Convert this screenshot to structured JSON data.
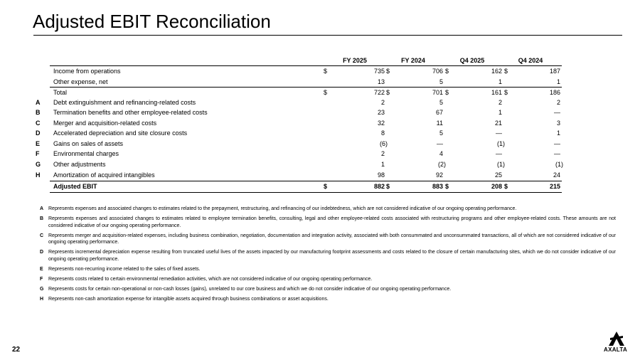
{
  "title": "Adjusted EBIT Reconciliation",
  "table": {
    "columns": [
      "FY 2025",
      "FY 2024",
      "Q4 2025",
      "Q4 2024"
    ],
    "rows": [
      {
        "label": "Income from operations",
        "currency": "$",
        "values": [
          "735",
          "706",
          "162",
          "187"
        ]
      },
      {
        "label": "Other expense, net",
        "values": [
          "13",
          "5",
          "1",
          "1"
        ]
      },
      {
        "label": "Total",
        "currency": "$",
        "values": [
          "722",
          "701",
          "161",
          "186"
        ]
      },
      {
        "letter": "A",
        "label": "Debt extinguishment and refinancing-related costs",
        "values": [
          "2",
          "5",
          "2",
          "2"
        ]
      },
      {
        "letter": "B",
        "label": "Termination benefits and other employee-related costs",
        "values": [
          "23",
          "67",
          "1",
          "—"
        ]
      },
      {
        "letter": "C",
        "label": "Merger and acquisition-related costs",
        "values": [
          "32",
          "11",
          "21",
          "3"
        ]
      },
      {
        "letter": "D",
        "label": "Accelerated depreciation and site closure costs",
        "values": [
          "8",
          "5",
          "—",
          "1"
        ]
      },
      {
        "letter": "E",
        "label": "Gains on sales of assets",
        "values": [
          "(6)",
          "—",
          "(1)",
          "—"
        ]
      },
      {
        "letter": "F",
        "label": "Environmental charges",
        "values": [
          "2",
          "4",
          "—",
          "—"
        ]
      },
      {
        "letter": "G",
        "label": "Other adjustments",
        "values": [
          "1",
          "(2)",
          "(1)",
          "(1)"
        ]
      },
      {
        "letter": "H",
        "label": "Amortization of acquired intangibles",
        "values": [
          "98",
          "92",
          "25",
          "24"
        ]
      },
      {
        "label": "Adjusted EBIT",
        "currency": "$",
        "values": [
          "882",
          "883",
          "208",
          "215"
        ]
      }
    ]
  },
  "footnotes": [
    {
      "letter": "A",
      "text": "Represents expenses and associated changes to estimates related to the prepayment, restructuring, and refinancing of our indebtedness, which are not considered indicative of our ongoing operating performance."
    },
    {
      "letter": "B",
      "text": "Represents expenses and associated changes to estimates related to employee termination benefits, consulting, legal and other employee-related costs associated with restructuring programs and other employee-related costs. These amounts are not considered indicative of our ongoing operating performance."
    },
    {
      "letter": "C",
      "text": "Represents merger and acquisition-related expenses, including business combination, negotiation, documentation and integration activity, associated with both consummated and unconsummated transactions, all of which are not considered indicative of our ongoing operating performance."
    },
    {
      "letter": "D",
      "text": "Represents incremental depreciation expense resulting from truncated useful lives of the assets impacted by our manufacturing footprint assessments and costs related to the closure of certain manufacturing sites, which we do not consider indicative of our ongoing operating performance."
    },
    {
      "letter": "E",
      "text": "Represents non-recurring income related to the sales of fixed assets."
    },
    {
      "letter": "F",
      "text": "Represents costs related to certain environmental remediation activities, which are not considered indicative of our ongoing operating performance."
    },
    {
      "letter": "G",
      "text": "Represents costs for certain non-operational or non-cash losses (gains), unrelated to our core business and which we do not consider indicative of our ongoing operating performance."
    },
    {
      "letter": "H",
      "text": "Represents non-cash amortization expense for intangible assets acquired through business combinations or asset acquisitions."
    }
  ],
  "page_number": "22",
  "logo": "AXALTA"
}
